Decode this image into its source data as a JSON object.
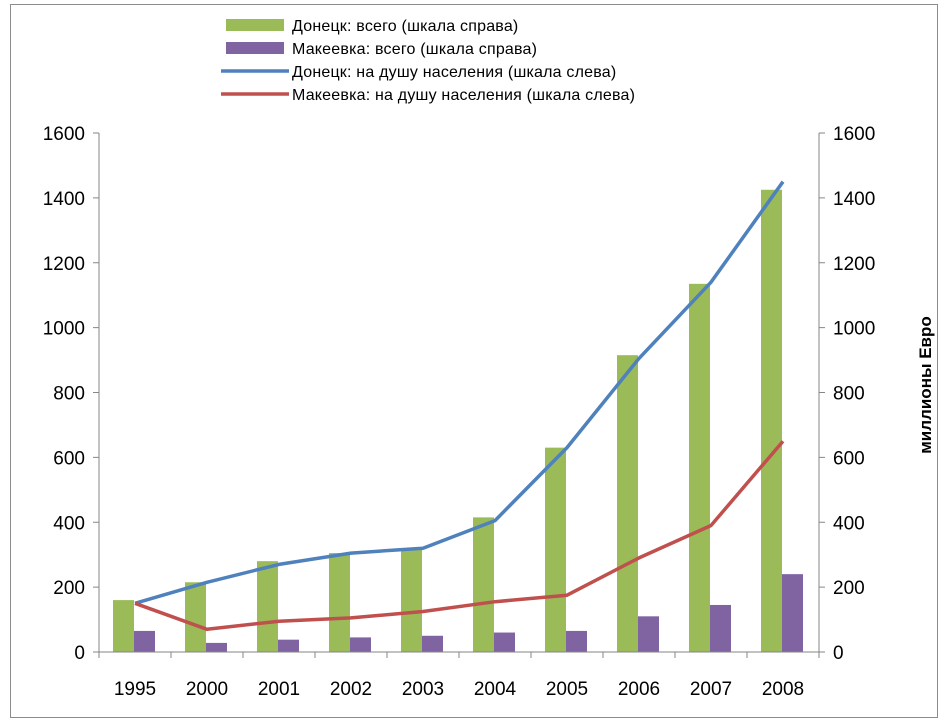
{
  "chart_data": {
    "type": "bar",
    "categories": [
      "1995",
      "2000",
      "2001",
      "2002",
      "2003",
      "2004",
      "2005",
      "2006",
      "2007",
      "2008"
    ],
    "series": [
      {
        "name": "Донецк: всего (шкала справа)",
        "kind": "bar",
        "axis": "right",
        "color": "#9bbb59",
        "values": [
          160,
          215,
          280,
          305,
          315,
          415,
          630,
          915,
          1135,
          1425
        ]
      },
      {
        "name": "Макеевка: всего (шкала справа)",
        "kind": "bar",
        "axis": "right",
        "color": "#8064a2",
        "values": [
          65,
          28,
          38,
          45,
          50,
          60,
          65,
          110,
          145,
          240
        ]
      },
      {
        "name": "Донецк: на душу населения (шкала слева)",
        "kind": "line",
        "axis": "left",
        "color": "#4f81bd",
        "values": [
          150,
          215,
          270,
          305,
          320,
          405,
          630,
          905,
          1140,
          1450
        ]
      },
      {
        "name": "Макеевка: на душу населения (шкала слева)",
        "kind": "line",
        "axis": "left",
        "color": "#c0504d",
        "values": [
          150,
          70,
          95,
          105,
          125,
          155,
          175,
          290,
          390,
          650
        ]
      }
    ],
    "ylim_left": [
      0,
      1600
    ],
    "ylim_right": [
      0,
      1600
    ],
    "yticks": [
      0,
      200,
      400,
      600,
      800,
      1000,
      1200,
      1400,
      1600
    ],
    "ylabel_right": "миллионы Евро",
    "grid": false,
    "legend_position": "top"
  }
}
